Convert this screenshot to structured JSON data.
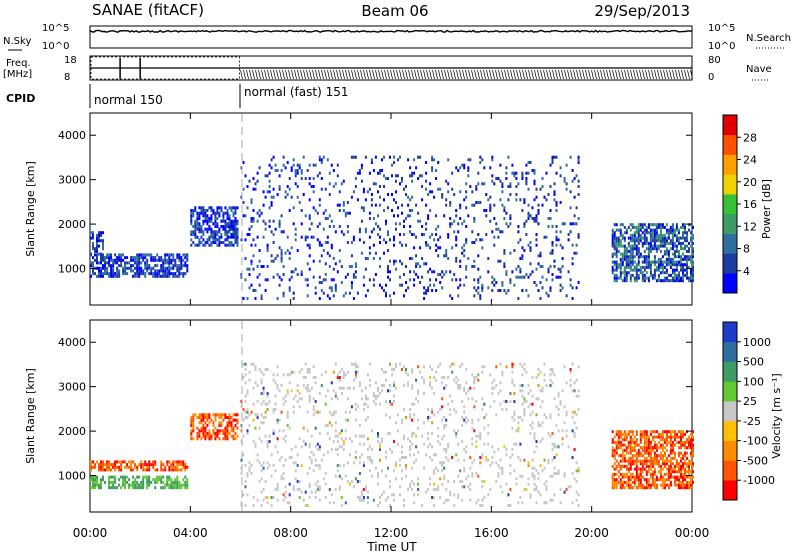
{
  "header": {
    "station": "SANAE (fitACF)",
    "beam": "Beam 06",
    "date": "29/Sep/2013"
  },
  "sky_panel": {
    "left_label": "N.Sky",
    "right_label": "N.Search",
    "left_ticks": [
      "10^5",
      "10^0"
    ],
    "right_ticks": [
      "10^5",
      "10^0"
    ]
  },
  "freq_panel": {
    "left_label_line1": "Freq.",
    "left_label_line2": "[MHz]",
    "left_ticks": [
      "18",
      "8"
    ],
    "right_label": "Nave",
    "right_ticks": [
      "80",
      "0"
    ]
  },
  "cpid_panel": {
    "label": "CPID",
    "modes": [
      {
        "name": "normal 150",
        "start_hour": 0,
        "end_hour": 6
      },
      {
        "name": "normal (fast) 151",
        "start_hour": 6,
        "end_hour": 24
      }
    ]
  },
  "time_axis": {
    "label": "Time UT",
    "ticks": [
      "00:00",
      "04:00",
      "08:00",
      "12:00",
      "16:00",
      "20:00",
      "00:00"
    ]
  },
  "chart_data": [
    {
      "type": "heatmap",
      "name": "power",
      "ylabel": "Slant Range [km]",
      "xlim_hours": [
        0,
        24
      ],
      "ylim": [
        180,
        4500
      ],
      "yticks": [
        "1000",
        "2000",
        "3000",
        "4000"
      ],
      "colorbar": {
        "label": "Power [dB]",
        "ticks": [
          "28",
          "24",
          "20",
          "16",
          "12",
          "8",
          "4"
        ],
        "colors": [
          "#0000ff",
          "#1e3ca0",
          "#2e6fa0",
          "#3c9c64",
          "#36c036",
          "#f0d000",
          "#ffa000",
          "#ff5000",
          "#e00000"
        ]
      },
      "regions": [
        {
          "from_hour": 0.0,
          "to_hour": 3.9,
          "range_km": [
            800,
            1300
          ],
          "dominant_level": "low"
        },
        {
          "from_hour": 0.0,
          "to_hour": 0.5,
          "range_km": [
            1300,
            1800
          ],
          "dominant_level": "low"
        },
        {
          "from_hour": 4.0,
          "to_hour": 5.9,
          "range_km": [
            1500,
            2400
          ],
          "dominant_level": "low"
        },
        {
          "from_hour": 6.0,
          "to_hour": 19.5,
          "range_km": [
            300,
            3500
          ],
          "dominant_level": "sparse"
        },
        {
          "from_hour": 20.8,
          "to_hour": 24.0,
          "range_km": [
            700,
            2000
          ],
          "dominant_level": "medium"
        }
      ]
    },
    {
      "type": "heatmap",
      "name": "velocity",
      "ylabel": "Slant Range [km]",
      "xlim_hours": [
        0,
        24
      ],
      "ylim": [
        180,
        4500
      ],
      "yticks": [
        "1000",
        "2000",
        "3000",
        "4000"
      ],
      "colorbar": {
        "label": "Velocity [m s⁻¹]",
        "ticks": [
          "1000",
          "500",
          "100",
          "25",
          "-25",
          "-100",
          "-500",
          "-1000"
        ],
        "colors": [
          "#ff0000",
          "#ff5500",
          "#ff8c00",
          "#ffc000",
          "#c8c8c8",
          "#64c832",
          "#3c9c64",
          "#2e6fa0",
          "#1e3cc8"
        ]
      },
      "regions": [
        {
          "from_hour": 0.0,
          "to_hour": 3.9,
          "range_km": [
            1100,
            1300
          ],
          "dominant_sign": "negative (orange)"
        },
        {
          "from_hour": 0.0,
          "to_hour": 3.9,
          "range_km": [
            700,
            1000
          ],
          "dominant_sign": "positive (green)"
        },
        {
          "from_hour": 4.0,
          "to_hour": 5.9,
          "range_km": [
            1800,
            2400
          ],
          "dominant_sign": "negative (orange)"
        },
        {
          "from_hour": 6.0,
          "to_hour": 19.5,
          "range_km": [
            300,
            3500
          ],
          "dominant_sign": "near zero (grey)"
        },
        {
          "from_hour": 20.8,
          "to_hour": 24.0,
          "range_km": [
            700,
            2000
          ],
          "dominant_sign": "negative (red/orange)"
        }
      ]
    }
  ]
}
